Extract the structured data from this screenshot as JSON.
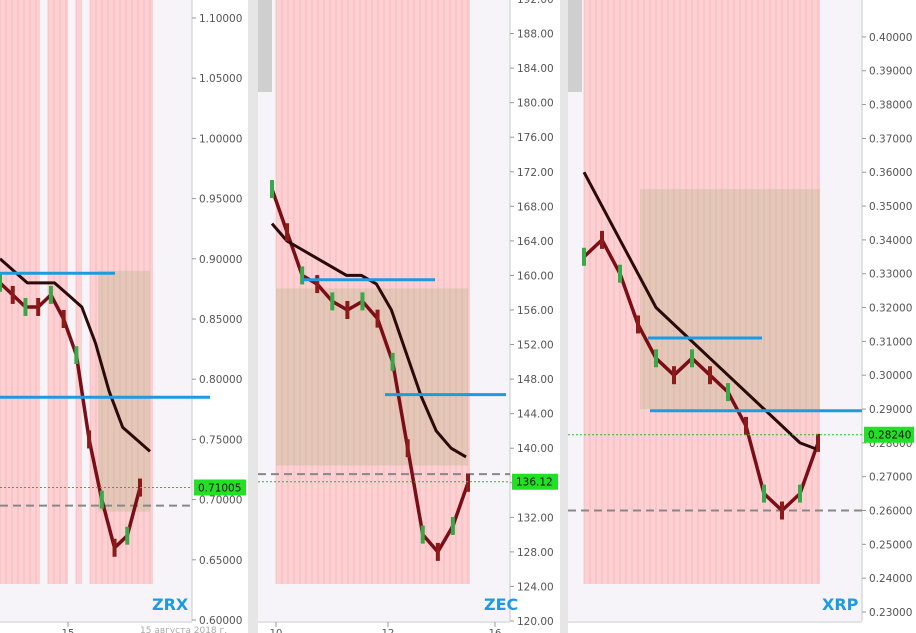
{
  "chart_data": [
    {
      "type": "line",
      "symbol": "ZRX",
      "ylim": [
        0.6,
        1.1
      ],
      "y_ticks": [
        "0.60000",
        "0.65000",
        "0.70000",
        "0.75000",
        "0.80000",
        "0.85000",
        "0.90000",
        "0.95000",
        "1.00000",
        "1.05000",
        "1.10000"
      ],
      "x_tick_labels": [
        "15"
      ],
      "footer_text": "15 августа 2018 г.",
      "current_price": "0.71005",
      "colors": {
        "price_tag": "#22e022",
        "symbol": "#1e9be0",
        "highlight": "#ffb4b4"
      },
      "series": [
        {
          "name": "",
          "values": [
            0.88,
            0.87,
            0.86,
            0.86,
            0.87,
            0.85,
            0.82,
            0.75,
            0.7,
            0.66,
            0.67,
            0.71
          ]
        },
        {
          "name": "",
          "values": [
            0.9,
            0.89,
            0.88,
            0.88,
            0.88,
            0.87,
            0.86,
            0.83,
            0.79,
            0.76,
            0.75,
            0.74
          ]
        }
      ]
    },
    {
      "type": "line",
      "symbol": "ZEC",
      "ylim": [
        120,
        192
      ],
      "y_ticks": [
        "120.00",
        "124.00",
        "128.00",
        "132.00",
        "136.00",
        "140.00",
        "144.00",
        "148.00",
        "152.00",
        "156.00",
        "160.00",
        "164.00",
        "168.00",
        "172.00",
        "176.00",
        "180.00",
        "184.00",
        "188.00",
        "192.00"
      ],
      "x_tick_labels": [
        "10",
        "12",
        "16"
      ],
      "current_price": "136.12",
      "colors": {
        "price_tag": "#22e022",
        "symbol": "#1e9be0",
        "highlight": "#ffb4b4"
      },
      "series": [
        {
          "name": "",
          "values": [
            170,
            165,
            160,
            159,
            157,
            156,
            157,
            155,
            150,
            140,
            130,
            128,
            131,
            136
          ]
        },
        {
          "name": "",
          "values": [
            166,
            164,
            163,
            162,
            161,
            160,
            160,
            159,
            156,
            151,
            146,
            142,
            140,
            139
          ]
        }
      ]
    },
    {
      "type": "line",
      "symbol": "XRP",
      "ylim": [
        0.23,
        0.405
      ],
      "y_ticks": [
        "0.23000",
        "0.24000",
        "0.25000",
        "0.26000",
        "0.27000",
        "0.28000",
        "0.29000",
        "0.30000",
        "0.31000",
        "0.32000",
        "0.33000",
        "0.34000",
        "0.35000",
        "0.36000",
        "0.37000",
        "0.38000",
        "0.39000",
        "0.40000"
      ],
      "current_price": "0.28240",
      "colors": {
        "price_tag": "#22e022",
        "symbol": "#1e9be0",
        "highlight": "#ffb4b4"
      },
      "series": [
        {
          "name": "",
          "values": [
            0.335,
            0.34,
            0.33,
            0.315,
            0.305,
            0.3,
            0.305,
            0.3,
            0.295,
            0.285,
            0.265,
            0.26,
            0.265,
            0.28
          ]
        },
        {
          "name": "",
          "values": [
            0.36,
            0.35,
            0.34,
            0.33,
            0.32,
            0.315,
            0.31,
            0.305,
            0.3,
            0.295,
            0.29,
            0.285,
            0.28,
            0.278
          ]
        }
      ]
    }
  ]
}
